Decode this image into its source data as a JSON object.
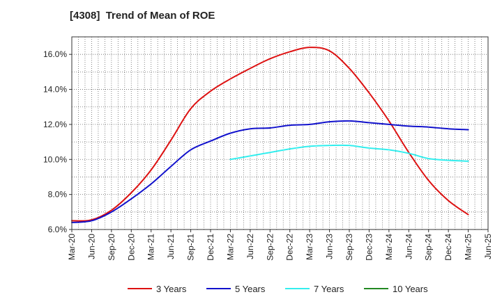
{
  "chart_data": {
    "type": "line",
    "title": "[4308]  Trend of Mean of ROE",
    "xlabel": "",
    "ylabel": "",
    "ylim": [
      6.0,
      17.0
    ],
    "y_ticks": [
      6.0,
      8.0,
      10.0,
      12.0,
      14.0,
      16.0
    ],
    "y_tick_labels": [
      "6.0%",
      "8.0%",
      "10.0%",
      "12.0%",
      "14.0%",
      "16.0%"
    ],
    "x_tick_labels": [
      "Mar-20",
      "Jun-20",
      "Sep-20",
      "Dec-20",
      "Mar-21",
      "Jun-21",
      "Sep-21",
      "Dec-21",
      "Mar-22",
      "Jun-22",
      "Sep-22",
      "Dec-22",
      "Mar-23",
      "Jun-23",
      "Sep-23",
      "Dec-23",
      "Mar-24",
      "Jun-24",
      "Sep-24",
      "Dec-24",
      "Mar-25",
      "Jun-25"
    ],
    "grid": true,
    "legend_position": "bottom",
    "series": [
      {
        "name": "3 Years",
        "color": "#dd1111",
        "values": [
          6.5,
          6.55,
          7.1,
          8.1,
          9.4,
          11.1,
          12.9,
          13.9,
          14.6,
          15.2,
          15.75,
          16.15,
          16.4,
          16.2,
          15.2,
          13.8,
          12.2,
          10.4,
          8.8,
          7.65,
          6.85,
          null
        ]
      },
      {
        "name": "5 Years",
        "color": "#1111cc",
        "values": [
          6.4,
          6.5,
          7.0,
          7.75,
          8.6,
          9.6,
          10.55,
          11.05,
          11.5,
          11.75,
          11.8,
          11.95,
          12.0,
          12.15,
          12.2,
          12.1,
          12.0,
          11.9,
          11.85,
          11.75,
          11.7,
          null
        ]
      },
      {
        "name": "7 Years",
        "color": "#33eeee",
        "values": [
          null,
          null,
          null,
          null,
          null,
          null,
          null,
          null,
          10.0,
          10.2,
          10.4,
          10.6,
          10.75,
          10.8,
          10.8,
          10.65,
          10.55,
          10.35,
          10.05,
          9.95,
          9.9,
          null
        ]
      },
      {
        "name": "10 Years",
        "color": "#228822",
        "values": [
          null,
          null,
          null,
          null,
          null,
          null,
          null,
          null,
          null,
          null,
          null,
          null,
          null,
          null,
          null,
          null,
          null,
          null,
          null,
          null,
          null,
          null
        ]
      }
    ]
  }
}
